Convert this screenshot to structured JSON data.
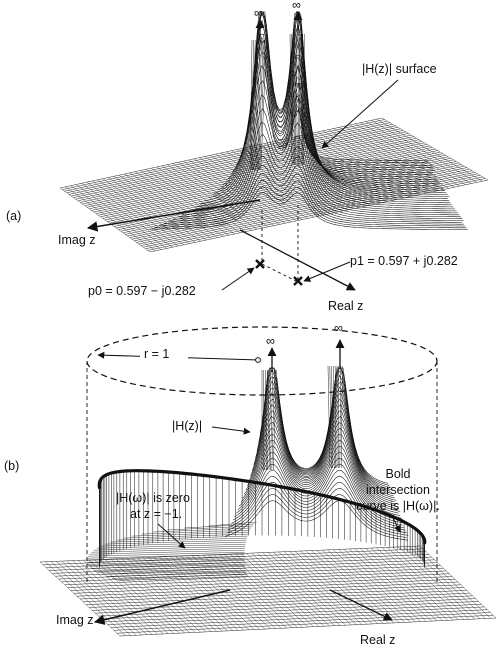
{
  "panel_a": {
    "label": "(a)",
    "infinity_left": "∞",
    "infinity_right": "∞",
    "surface_label": "|H(z)| surface",
    "imag_axis": "Imag z",
    "real_axis": "Real z",
    "pole_p0": "p0 = 0.597 − j0.282",
    "pole_p1": "p1 = 0.597 + j0.282"
  },
  "panel_b": {
    "label": "(b)",
    "infinity_left": "∞",
    "infinity_right": "∞",
    "radius_label": "r = 1",
    "surface_label": "|H(z)|",
    "zero_note_line1": "|H(ω)| is zero",
    "zero_note_line2": "at z = −1.",
    "bold_note_line1": "Bold",
    "bold_note_line2": "intersection",
    "bold_note_line3": "curve is |H(ω)|.",
    "imag_axis": "Imag z",
    "real_axis": "Real z"
  },
  "colors": {
    "ink": "#111111",
    "paper": "#ffffff"
  }
}
